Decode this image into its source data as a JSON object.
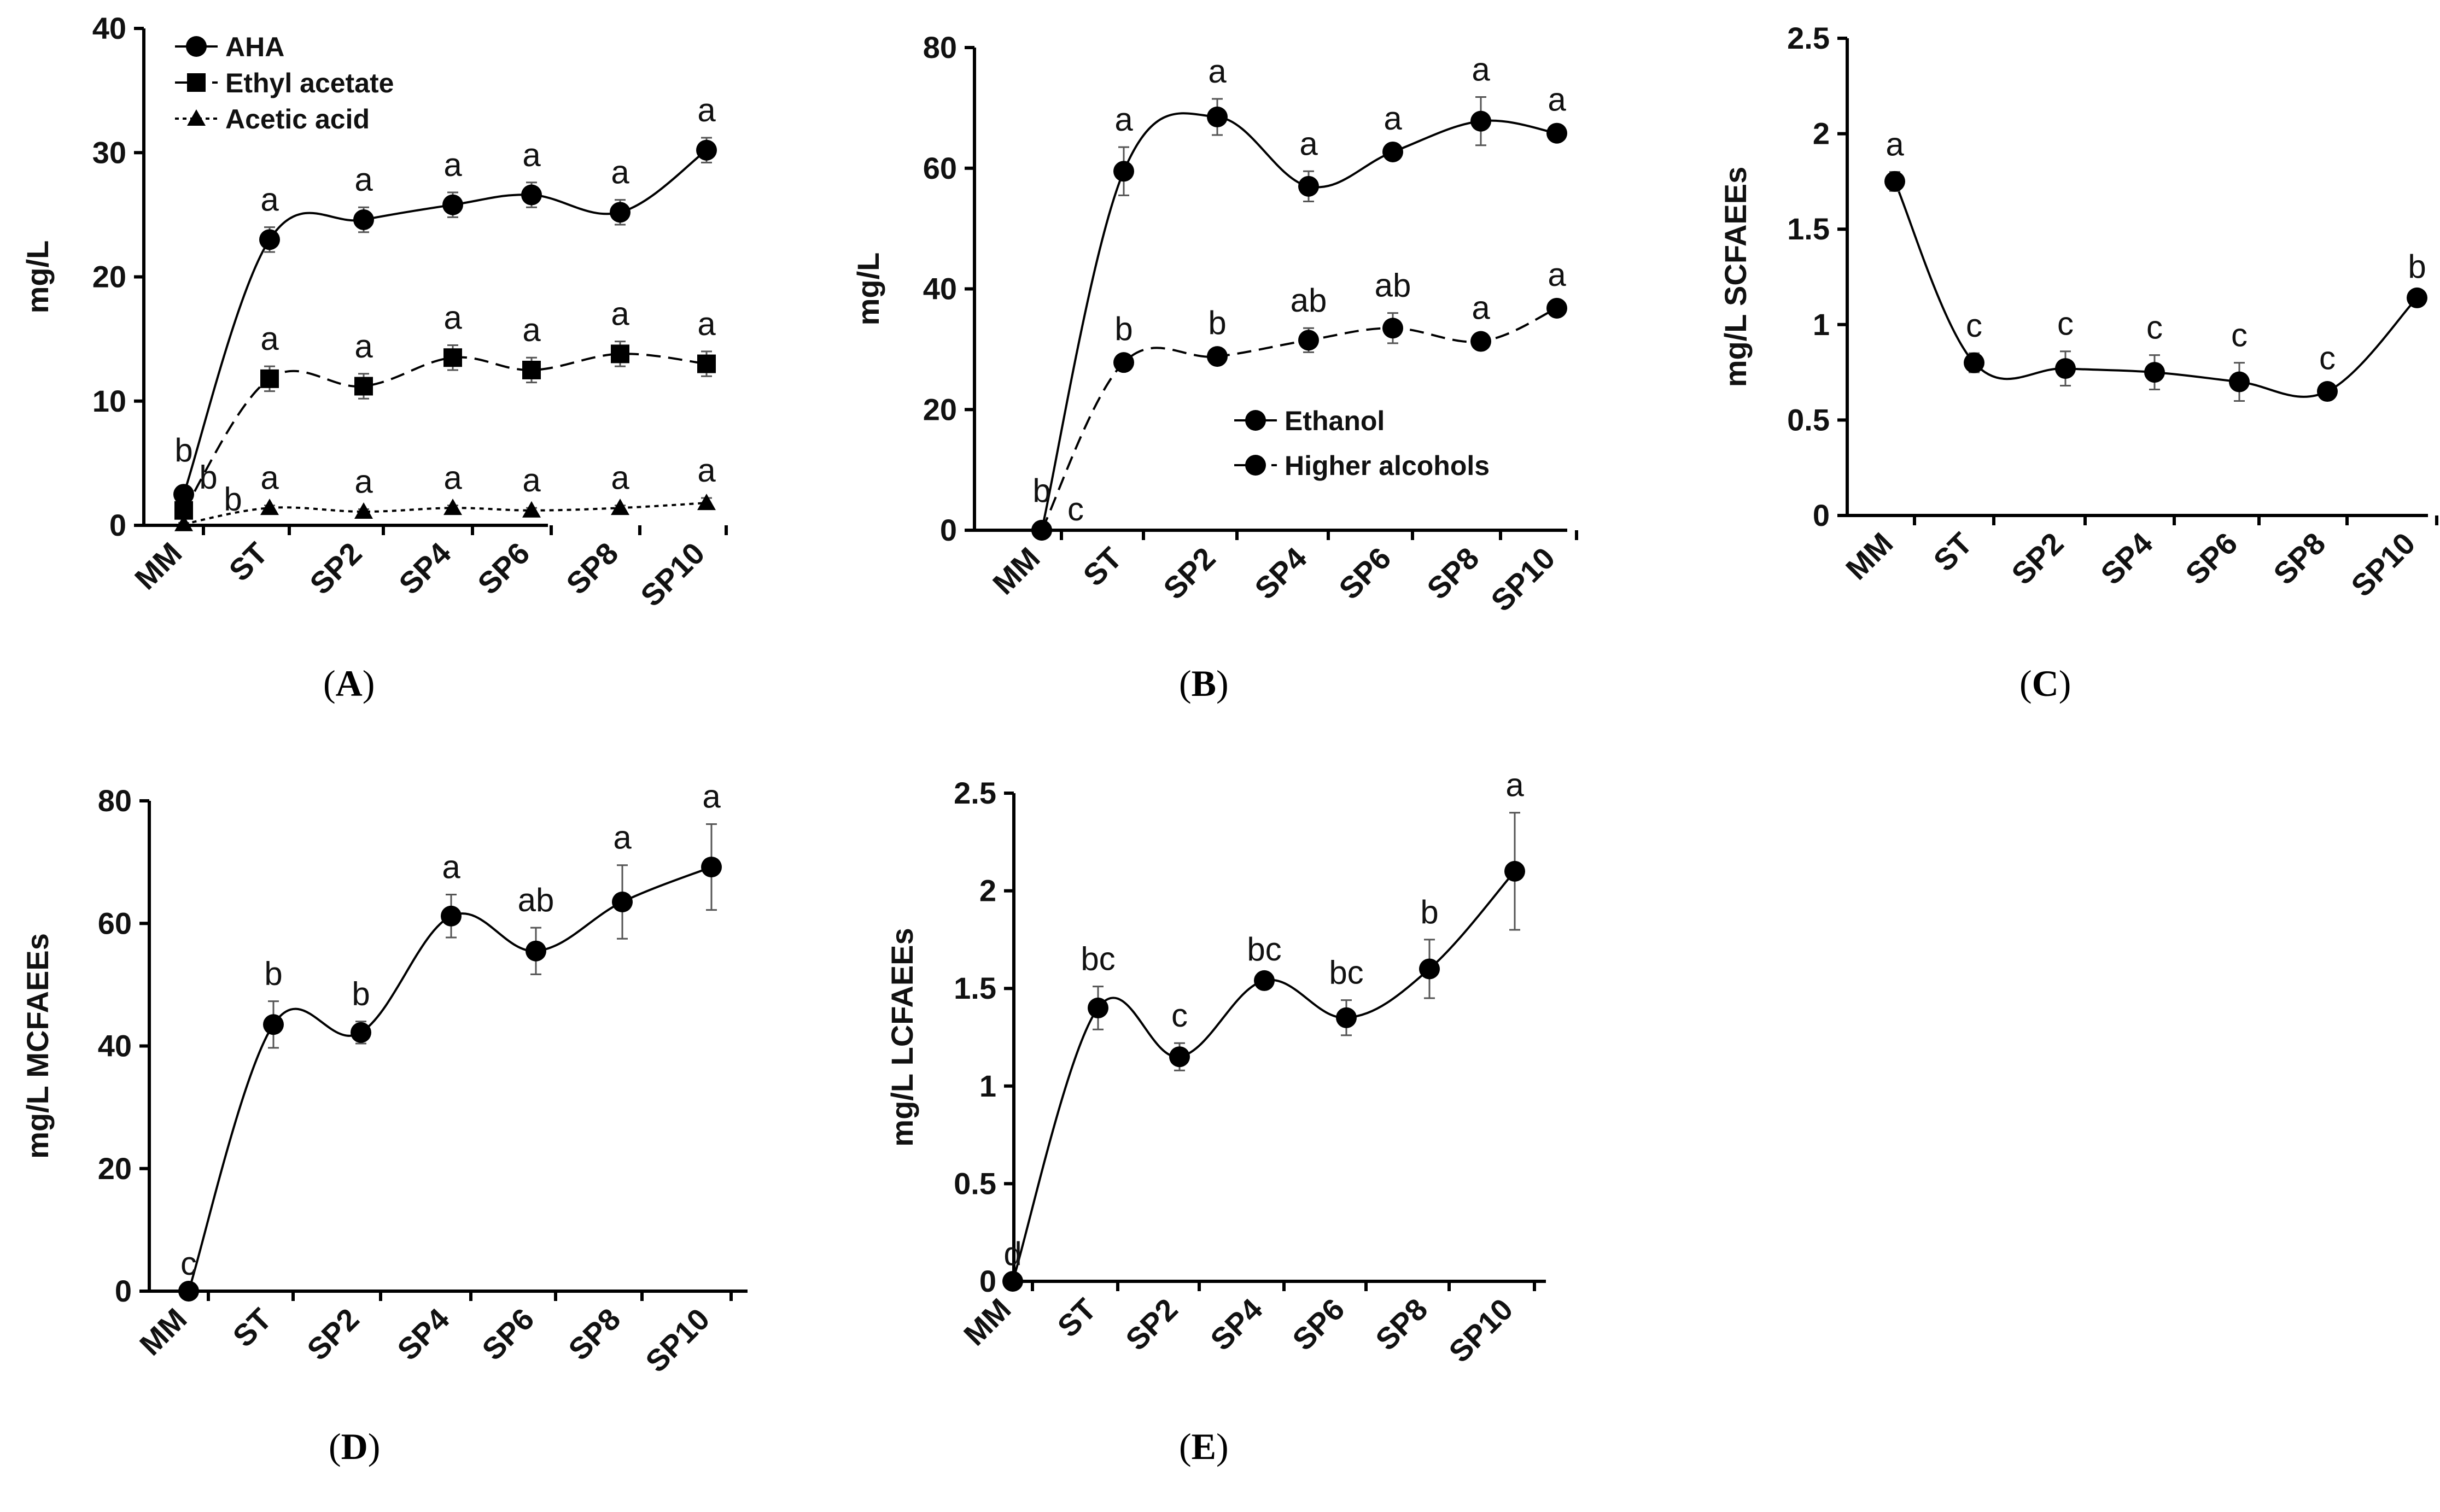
{
  "colors": {
    "line": "#000000",
    "errorbar": "#555555",
    "text": "#111111",
    "background": "#ffffff"
  },
  "chart_data": [
    {
      "id": "A",
      "type": "line",
      "caption": "A",
      "ylabel": "mg/L",
      "ylim": [
        0,
        40
      ],
      "yticks": [
        0,
        10,
        20,
        30,
        40
      ],
      "categories": [
        "MM",
        "ST",
        "SP2",
        "SP4",
        "SP6",
        "SP8",
        "SP10"
      ],
      "series": [
        {
          "name": "AHA",
          "marker": "circle",
          "dash": "solid",
          "values": [
            2.5,
            23.0,
            24.6,
            25.8,
            26.6,
            25.2,
            30.2
          ],
          "errors": [
            0.3,
            1.0,
            1.0,
            1.0,
            1.0,
            1.0,
            1.0
          ],
          "sig": [
            "b",
            "a",
            "a",
            "a",
            "a",
            "a",
            "a"
          ]
        },
        {
          "name": "Ethyl acetate",
          "marker": "square",
          "dash": "dashed",
          "values": [
            1.2,
            11.8,
            11.2,
            13.5,
            12.5,
            13.8,
            13.0
          ],
          "errors": [
            0.2,
            1.0,
            1.0,
            1.0,
            1.0,
            1.0,
            1.0
          ],
          "sig": [
            "b",
            "a",
            "a",
            "a",
            "a",
            "a",
            "a"
          ]
        },
        {
          "name": "Acetic acid",
          "marker": "triangle",
          "dash": "dotted",
          "values": [
            0.1,
            1.4,
            1.1,
            1.4,
            1.2,
            1.4,
            1.8
          ],
          "errors": [
            0.1,
            0.2,
            0.2,
            0.2,
            0.2,
            0.2,
            0.4
          ],
          "sig": [
            "b",
            "a",
            "a",
            "a",
            "a",
            "a",
            "a"
          ]
        }
      ],
      "legend": "top-left"
    },
    {
      "id": "B",
      "type": "line",
      "caption": "B",
      "ylabel": "mg/L",
      "ylim": [
        0,
        80
      ],
      "yticks": [
        0,
        20,
        40,
        60,
        80
      ],
      "categories": [
        "MM",
        "ST",
        "SP2",
        "SP4",
        "SP6",
        "SP8",
        "SP10"
      ],
      "series": [
        {
          "name": "Ethanol",
          "marker": "circle",
          "dash": "solid",
          "values": [
            0,
            59.5,
            68.5,
            57.0,
            62.7,
            67.8,
            65.8
          ],
          "errors": [
            0,
            4.0,
            3.0,
            2.5,
            1.0,
            4.0,
            1.0
          ],
          "sig": [
            "b",
            "a",
            "a",
            "a",
            "a",
            "a",
            "a"
          ]
        },
        {
          "name": "Higher alcohols",
          "marker": "circle",
          "dash": "dashed",
          "values": [
            0,
            27.8,
            28.8,
            31.5,
            33.5,
            31.3,
            36.8
          ],
          "errors": [
            0,
            1.0,
            1.0,
            2.0,
            2.5,
            1.0,
            1.0
          ],
          "sig": [
            "c",
            "b",
            "b",
            "ab",
            "ab",
            "a",
            "a"
          ]
        }
      ],
      "legend": "bottom-right"
    },
    {
      "id": "C",
      "type": "line",
      "caption": "C",
      "ylabel": "mg/L SCFAEEs",
      "ylim": [
        0,
        2.5
      ],
      "yticks": [
        0,
        0.5,
        1,
        1.5,
        2,
        2.5
      ],
      "categories": [
        "MM",
        "ST",
        "SP2",
        "SP4",
        "SP6",
        "SP8",
        "SP10"
      ],
      "series": [
        {
          "name": "SCFAEEs",
          "marker": "circle",
          "dash": "solid",
          "values": [
            1.75,
            0.8,
            0.77,
            0.75,
            0.7,
            0.65,
            1.14
          ],
          "errors": [
            0.05,
            0.05,
            0.09,
            0.09,
            0.1,
            0.03,
            0.02
          ],
          "sig": [
            "a",
            "c",
            "c",
            "c",
            "c",
            "c",
            "b"
          ]
        }
      ]
    },
    {
      "id": "D",
      "type": "line",
      "caption": "D",
      "ylabel": "mg/L MCFAEEs",
      "ylim": [
        0,
        80
      ],
      "yticks": [
        0,
        20,
        40,
        60,
        80
      ],
      "categories": [
        "MM",
        "ST",
        "SP2",
        "SP4",
        "SP6",
        "SP8",
        "SP10"
      ],
      "series": [
        {
          "name": "MCFAEEs",
          "marker": "circle",
          "dash": "solid",
          "values": [
            0,
            43.5,
            42.2,
            61.2,
            55.5,
            63.5,
            69.2
          ],
          "errors": [
            0,
            3.8,
            1.8,
            3.5,
            3.8,
            6.0,
            7.0
          ],
          "sig": [
            "c",
            "b",
            "b",
            "a",
            "ab",
            "a",
            "a"
          ]
        }
      ]
    },
    {
      "id": "E",
      "type": "line",
      "caption": "E",
      "ylabel": "mg/L LCFAEEs",
      "ylim": [
        0,
        2.5
      ],
      "yticks": [
        0,
        0.5,
        1,
        1.5,
        2,
        2.5
      ],
      "categories": [
        "MM",
        "ST",
        "SP2",
        "SP4",
        "SP6",
        "SP8",
        "SP10"
      ],
      "series": [
        {
          "name": "LCFAEEs",
          "marker": "circle",
          "dash": "solid",
          "values": [
            0,
            1.4,
            1.15,
            1.54,
            1.35,
            1.6,
            2.1
          ],
          "errors": [
            0,
            0.11,
            0.07,
            0.02,
            0.09,
            0.15,
            0.3
          ],
          "sig": [
            "d",
            "bc",
            "c",
            "bc",
            "bc",
            "b",
            "a"
          ]
        }
      ]
    }
  ]
}
